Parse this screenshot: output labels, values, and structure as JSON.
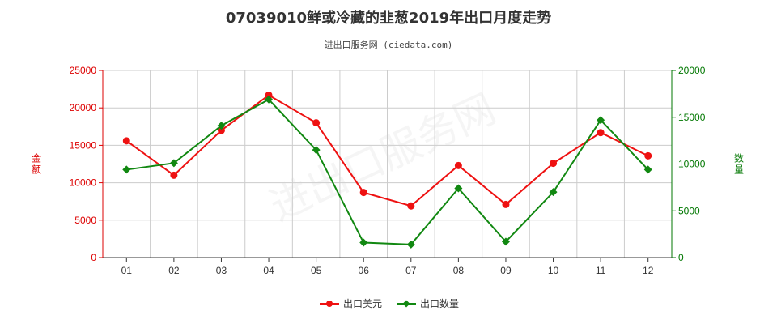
{
  "chart_data": {
    "type": "line",
    "title": "07039010鲜或冷藏的韭葱2019年出口月度走势",
    "subtitle": "进出口服务网 (ciedata.com)",
    "categories": [
      "01",
      "02",
      "03",
      "04",
      "05",
      "06",
      "07",
      "08",
      "09",
      "10",
      "11",
      "12"
    ],
    "y_left": {
      "label": "金额",
      "ylim": [
        0,
        25000
      ],
      "ticks": [
        0,
        5000,
        10000,
        15000,
        20000,
        25000
      ],
      "color": "#dd0000"
    },
    "y_right": {
      "label": "数量",
      "ylim": [
        0,
        20000
      ],
      "ticks": [
        0,
        5000,
        10000,
        15000,
        20000
      ],
      "color": "#007700"
    },
    "series": [
      {
        "name": "出口美元",
        "axis": "left",
        "color": "#ee1111",
        "marker": "circle",
        "values": [
          15600,
          11000,
          17000,
          21700,
          18000,
          8700,
          6900,
          12300,
          7100,
          12600,
          16700,
          13600
        ]
      },
      {
        "name": "出口数量",
        "axis": "right",
        "color": "#118811",
        "marker": "diamond",
        "values": [
          9400,
          10100,
          14100,
          16900,
          11500,
          1600,
          1400,
          7400,
          1700,
          7000,
          14700,
          9400
        ]
      }
    ],
    "grid": true,
    "legend_position": "bottom-center",
    "watermark": "进出口服务网"
  }
}
